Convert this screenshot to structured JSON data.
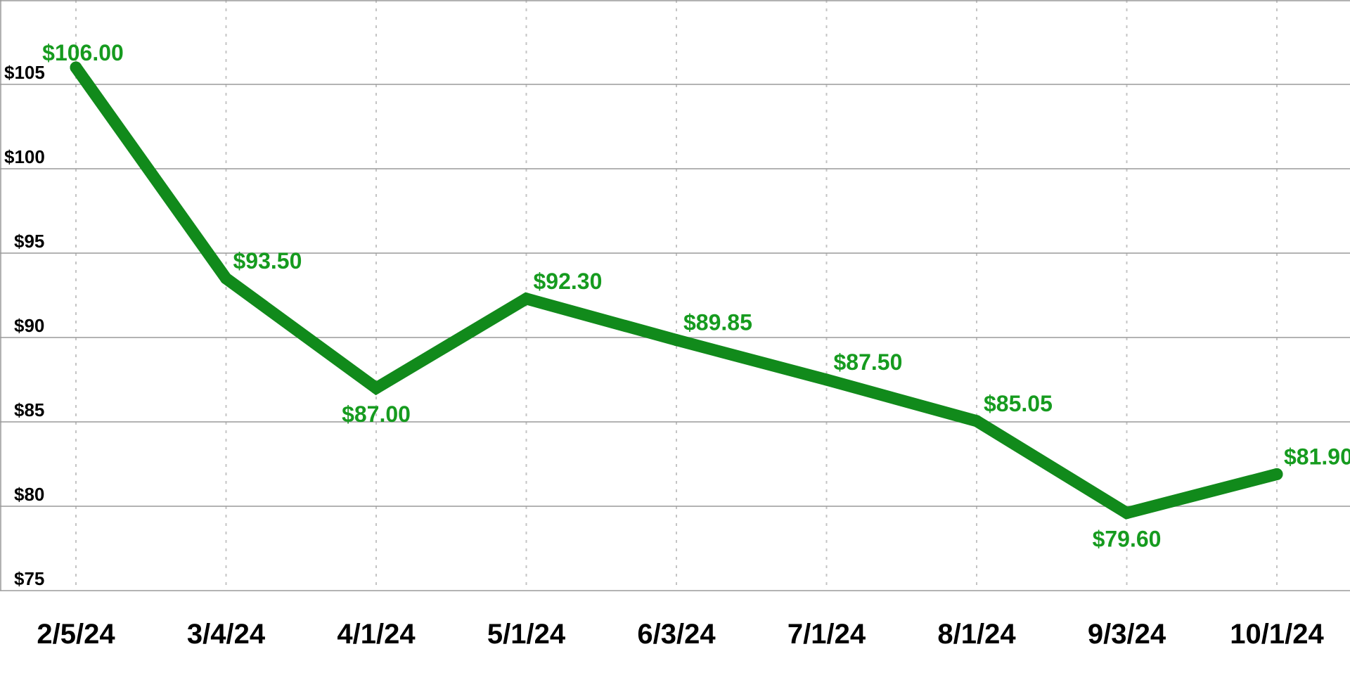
{
  "chart_data": {
    "type": "line",
    "title": "",
    "xlabel": "",
    "ylabel": "",
    "categories": [
      "2/5/24",
      "3/4/24",
      "4/1/24",
      "5/1/24",
      "6/3/24",
      "7/1/24",
      "8/1/24",
      "9/3/24",
      "10/1/24"
    ],
    "series": [
      {
        "values": [
          106.0,
          93.5,
          87.0,
          92.3,
          89.85,
          87.5,
          85.05,
          79.6,
          81.9
        ],
        "labels": [
          "$106.00",
          "$93.50",
          "$87.00",
          "$92.30",
          "$89.85",
          "$87.50",
          "$85.05",
          "$79.60",
          "$81.90"
        ],
        "color": "#118a1b",
        "label_color": "#169b1f"
      }
    ],
    "ylim": [
      75,
      110
    ],
    "y_ticks": [
      75,
      80,
      85,
      90,
      95,
      100,
      105
    ],
    "y_tick_labels": [
      "$75",
      "$80",
      "$85",
      "$90",
      "$95",
      "$100",
      "$105"
    ],
    "grid": {
      "horizontal": true,
      "vertical": "dotted"
    },
    "legend": "none"
  }
}
